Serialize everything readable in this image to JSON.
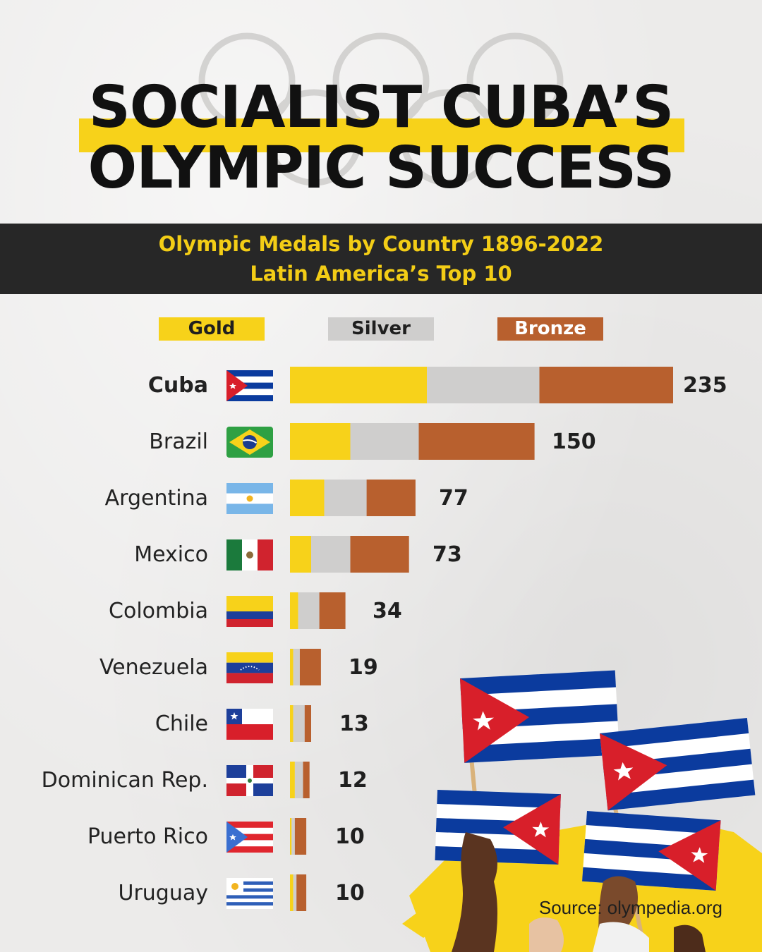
{
  "title": {
    "line1": "SOCIALIST CUBA’S",
    "line2": "OLYMPIC SUCCESS"
  },
  "subtitle": {
    "line1": "Olympic Medals by Country 1896-2022",
    "line2": "Latin America’s Top 10"
  },
  "source": "Source: olympedia.org",
  "colors": {
    "gold": "#f7d21a",
    "silver": "#cfcecd",
    "bronze": "#b8602e",
    "band": "#272727",
    "band_text": "#f3cd16"
  },
  "chart_data": {
    "type": "bar",
    "orientation": "horizontal",
    "stacked": true,
    "categories": [
      "Cuba",
      "Brazil",
      "Argentina",
      "Mexico",
      "Colombia",
      "Venezuela",
      "Chile",
      "Dominican Rep.",
      "Puerto Rico",
      "Uruguay"
    ],
    "series": [
      {
        "name": "Gold",
        "values": [
          84,
          37,
          21,
          13,
          5,
          2,
          2,
          3,
          1,
          2
        ]
      },
      {
        "name": "Silver",
        "values": [
          69,
          42,
          26,
          24,
          13,
          4,
          7,
          5,
          2,
          2
        ]
      },
      {
        "name": "Bronze",
        "values": [
          82,
          71,
          30,
          36,
          16,
          13,
          4,
          4,
          7,
          6
        ]
      }
    ],
    "totals": [
      "235",
      "150",
      "77",
      "73",
      "34",
      "19",
      "13",
      "12",
      "10",
      "10"
    ],
    "xlim": [
      0,
      235
    ],
    "legend": "top",
    "grid": false
  }
}
